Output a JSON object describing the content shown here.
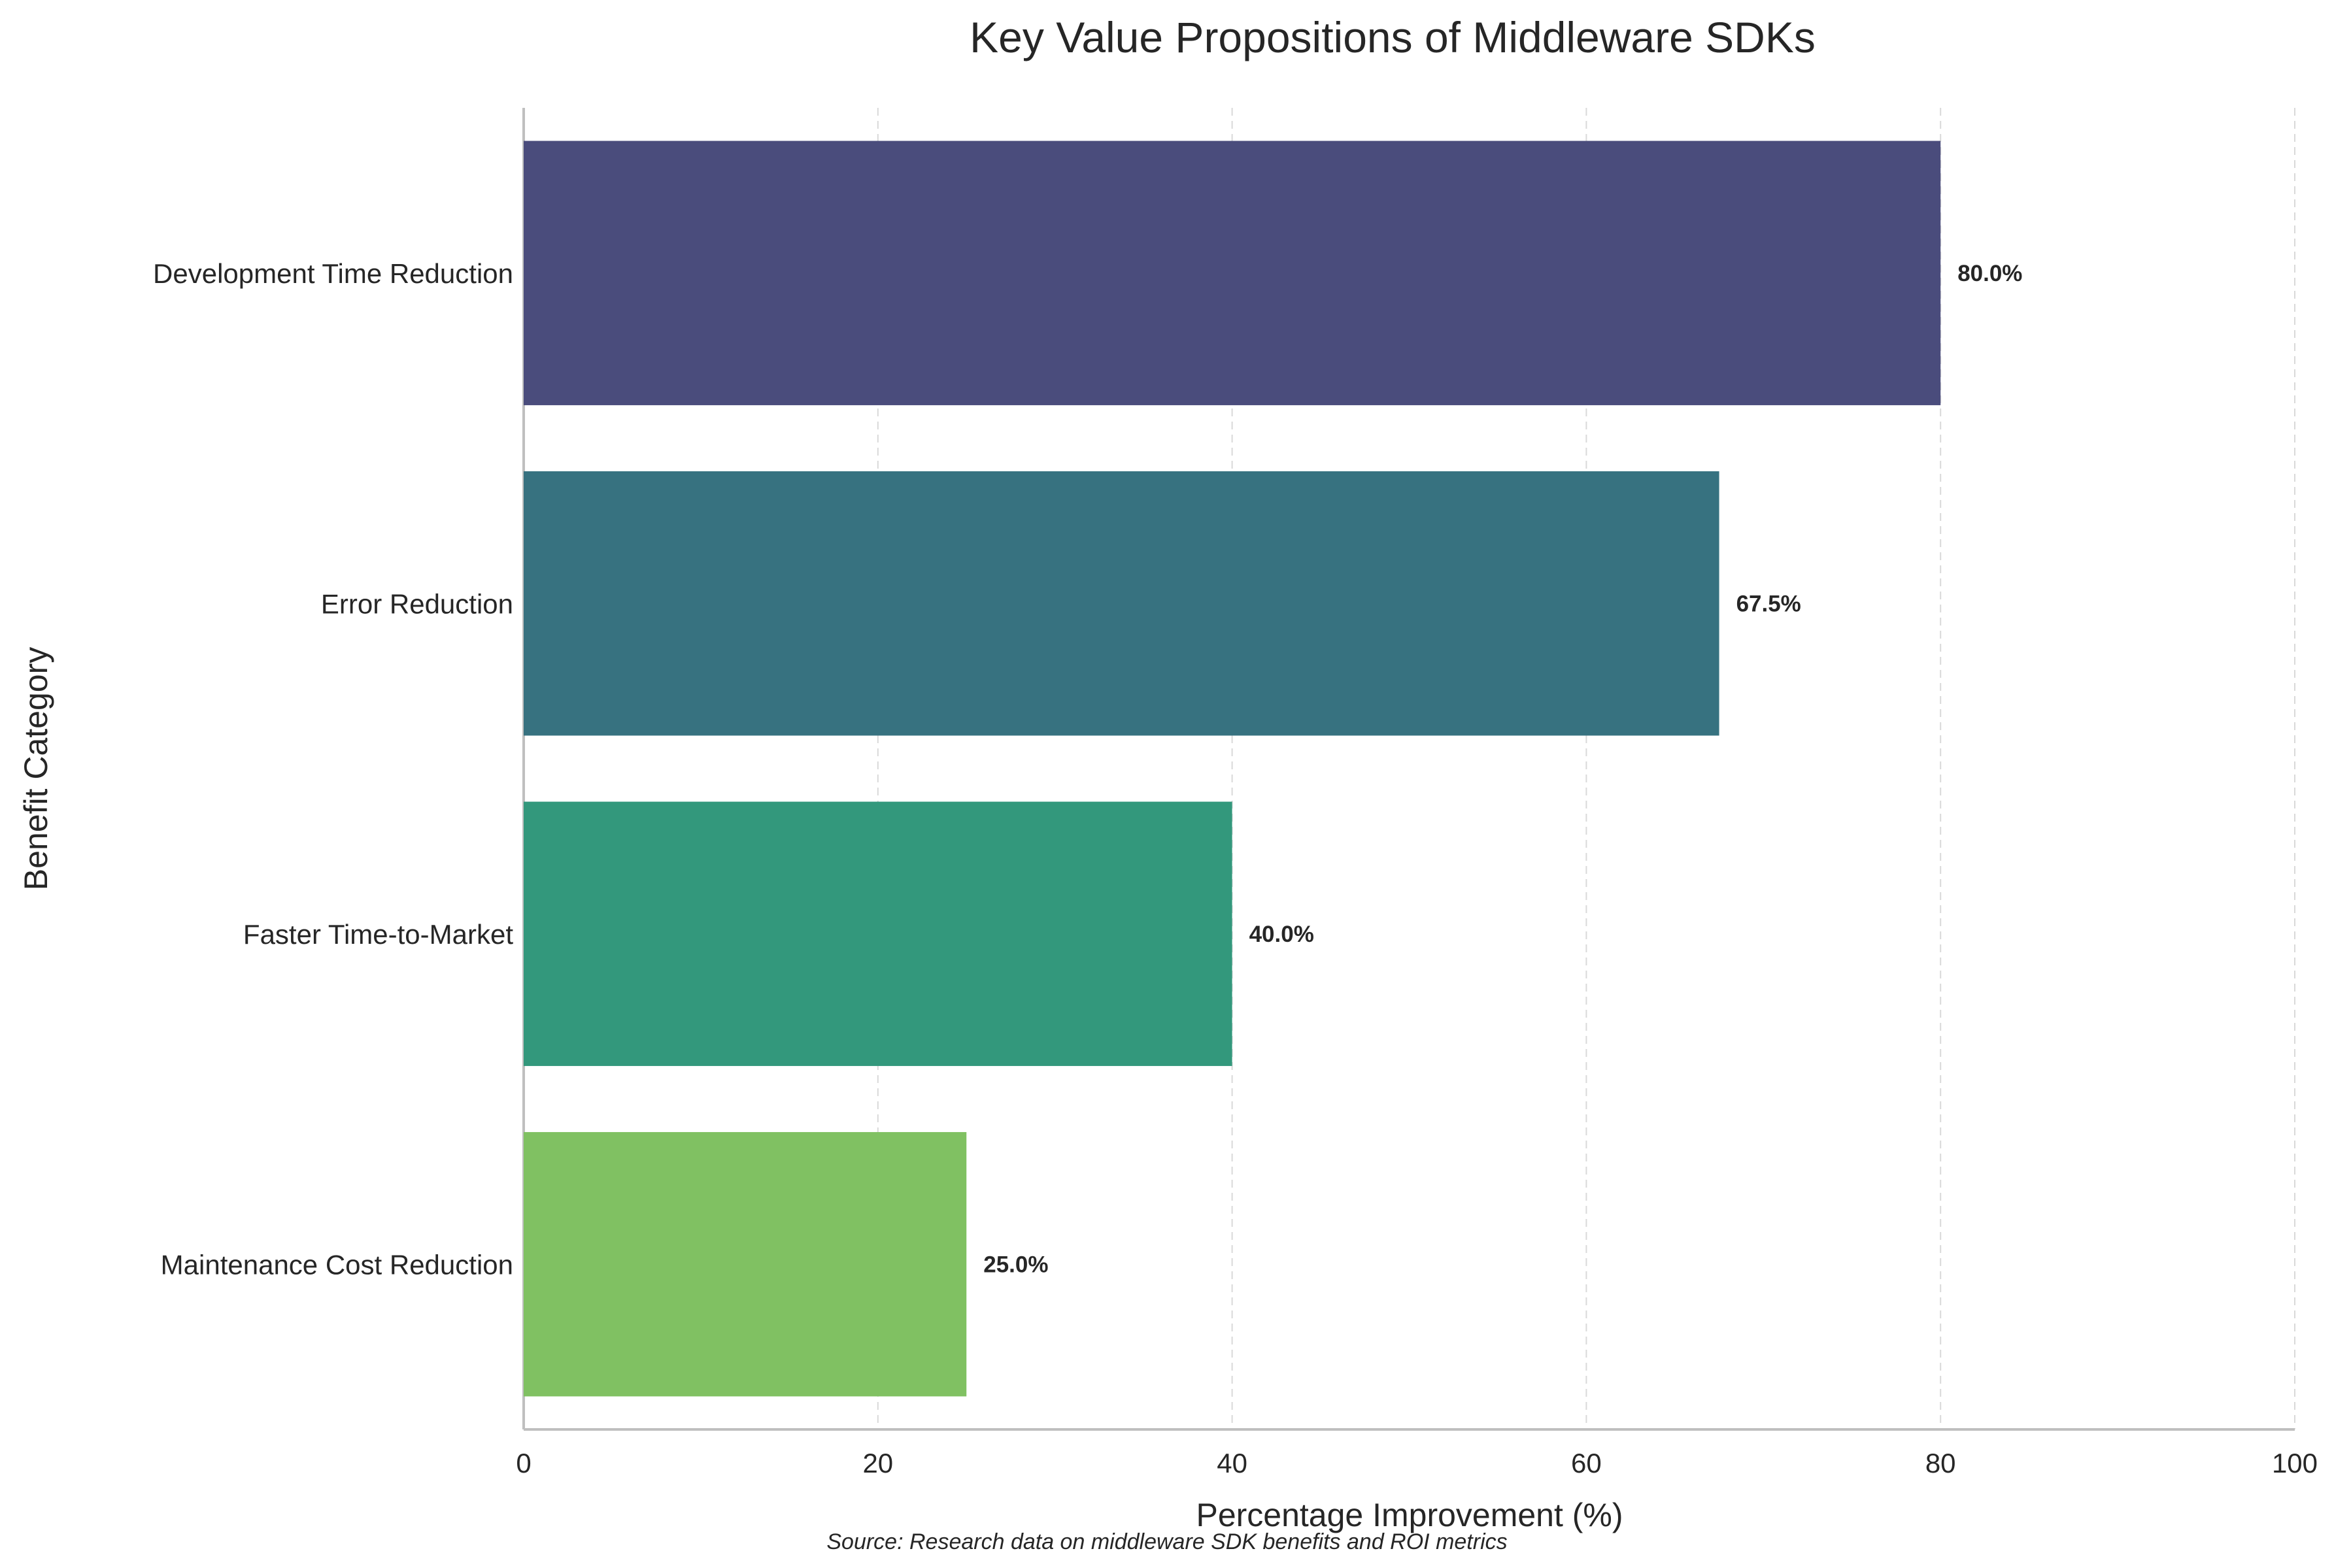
{
  "chart_data": {
    "type": "bar",
    "orientation": "horizontal",
    "title": "Key Value Propositions of Middleware SDKs",
    "xlabel": "Percentage Improvement (%)",
    "ylabel": "Benefit Category",
    "categories": [
      "Development Time Reduction",
      "Error Reduction",
      "Faster Time-to-Market",
      "Maintenance Cost Reduction"
    ],
    "values": [
      80.0,
      67.5,
      40.0,
      25.0
    ],
    "value_labels": [
      "80.0%",
      "67.5%",
      "40.0%",
      "25.0%"
    ],
    "colors": [
      "#4a4c7c",
      "#377280",
      "#33987c",
      "#80c162"
    ],
    "xlim": [
      0,
      100
    ],
    "xticks": [
      0,
      20,
      40,
      60,
      80,
      100
    ],
    "grid": "vertical dashed",
    "legend": "none"
  },
  "footer": {
    "source": "Source: Research data on middleware SDK benefits and ROI metrics"
  }
}
